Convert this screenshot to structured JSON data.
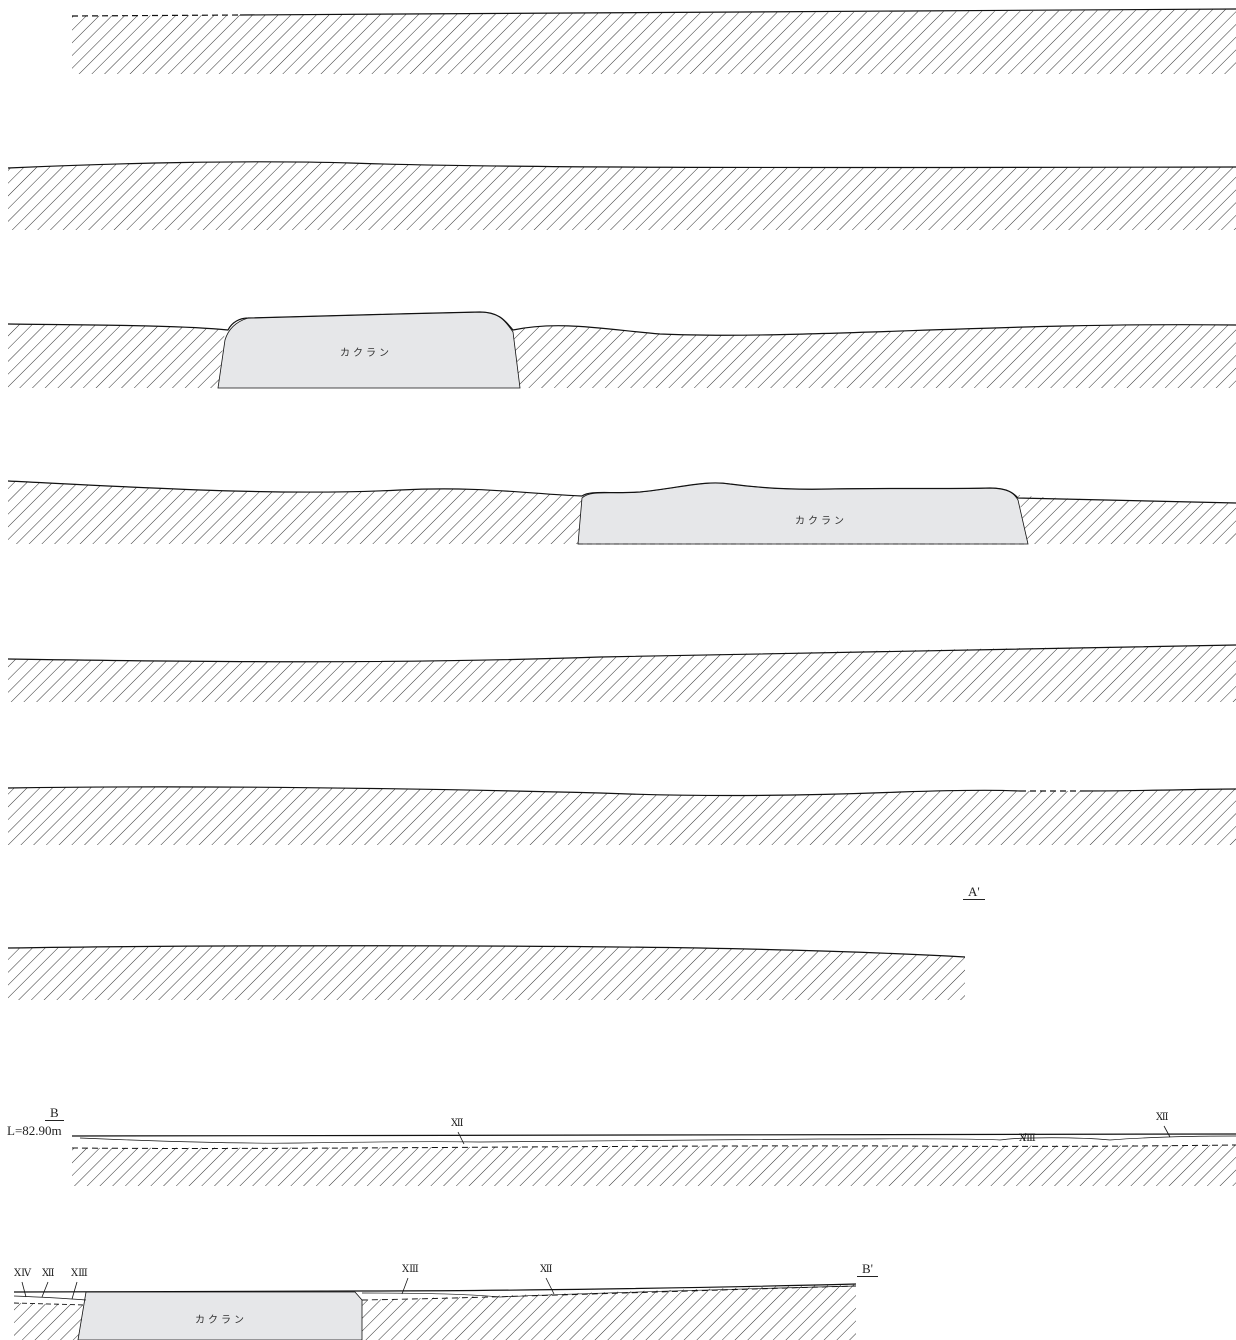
{
  "section_labels": {
    "a_end": "A'",
    "b_start": "B",
    "b_elevation": "L=82.90m",
    "b_end": "B'"
  },
  "disturbance_label": "カクラン",
  "layer_labels": {
    "strip8_a": "Ⅻ",
    "strip8_b": "ⅩⅢ",
    "strip8_c": "Ⅻ",
    "strip9_a": "ⅩⅣ",
    "strip9_b": "Ⅻ",
    "strip9_c": "ⅩⅢ",
    "strip9_d": "ⅩⅢ",
    "strip9_e": "Ⅻ"
  },
  "colors": {
    "line": "#111111",
    "hatch": "#1a1a1a",
    "disturbance_fill": "#e6e7e9"
  }
}
